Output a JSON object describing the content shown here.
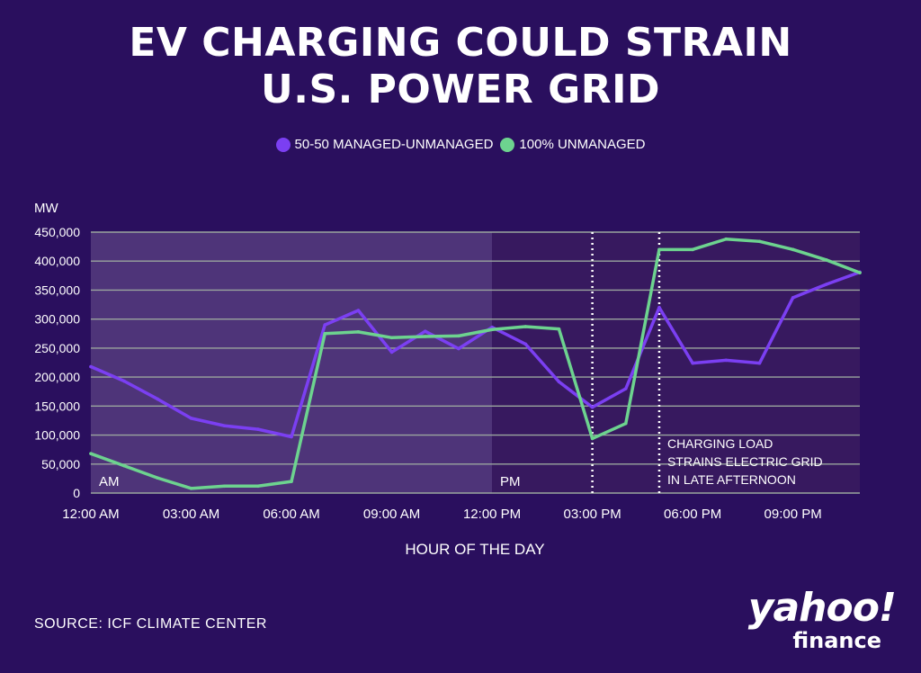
{
  "title_line1": "EV CHARGING COULD STRAIN",
  "title_line2": "U.S. POWER GRID",
  "legend": [
    {
      "label": "50-50 MANAGED-UNMANAGED",
      "color": "#7b3ff2"
    },
    {
      "label": "100% UNMANAGED",
      "color": "#6dd38f"
    }
  ],
  "source": "SOURCE: ICF CLIMATE CENTER",
  "logo": {
    "main": "yahoo!",
    "sub": "finance"
  },
  "colors": {
    "background": "#2a0f5e",
    "am_region": "#4e3479",
    "pm_region": "#37195f",
    "grid": "#9aa59e",
    "series_managed": "#7b3ff2",
    "series_unmanaged": "#6dd38f"
  },
  "chart_data": {
    "type": "line",
    "title": "EV CHARGING COULD STRAIN U.S. POWER GRID",
    "xlabel": "HOUR OF THE DAY",
    "ylabel": "MW",
    "ylim": [
      0,
      450000
    ],
    "xlim": [
      0,
      23
    ],
    "yticks": [
      0,
      50000,
      100000,
      150000,
      200000,
      250000,
      300000,
      350000,
      400000,
      450000
    ],
    "ytick_labels": [
      "0",
      "50,000",
      "100,000",
      "150,000",
      "200,000",
      "250,000",
      "300,000",
      "350,000",
      "400,000",
      "450,000"
    ],
    "xticks": [
      0,
      3,
      6,
      9,
      12,
      15,
      18,
      21
    ],
    "xtick_labels": [
      "12:00 AM",
      "03:00 AM",
      "06:00 AM",
      "09:00 AM",
      "12:00 PM",
      "03:00 PM",
      "06:00 PM",
      "09:00 PM"
    ],
    "grid": true,
    "legend_position": "top-center",
    "x": [
      0,
      1,
      2,
      3,
      4,
      5,
      6,
      7,
      8,
      9,
      10,
      11,
      12,
      13,
      14,
      15,
      16,
      17,
      18,
      19,
      20,
      21,
      22,
      23
    ],
    "series": [
      {
        "name": "50-50 MANAGED-UNMANAGED",
        "color": "#7b3ff2",
        "values": [
          218000,
          193000,
          162000,
          129000,
          116000,
          110000,
          97000,
          290000,
          315000,
          243000,
          279000,
          249000,
          286000,
          257000,
          192000,
          148000,
          180000,
          320000,
          224000,
          229000,
          224000,
          337000,
          360000,
          381000
        ]
      },
      {
        "name": "100% UNMANAGED",
        "color": "#6dd38f",
        "values": [
          68000,
          47000,
          26000,
          8000,
          12000,
          12000,
          20000,
          275000,
          278000,
          268000,
          270000,
          271000,
          282000,
          287000,
          283000,
          94000,
          120000,
          420000,
          420000,
          438000,
          434000,
          420000,
          402000,
          380000
        ]
      }
    ],
    "regions": [
      {
        "label": "AM",
        "from": 0,
        "to": 12
      },
      {
        "label": "PM",
        "from": 12,
        "to": 23
      }
    ],
    "markers": [
      15,
      17
    ],
    "annotation": [
      "CHARGING LOAD",
      "STRAINS ELECTRIC GRID",
      "IN LATE AFTERNOON"
    ]
  }
}
